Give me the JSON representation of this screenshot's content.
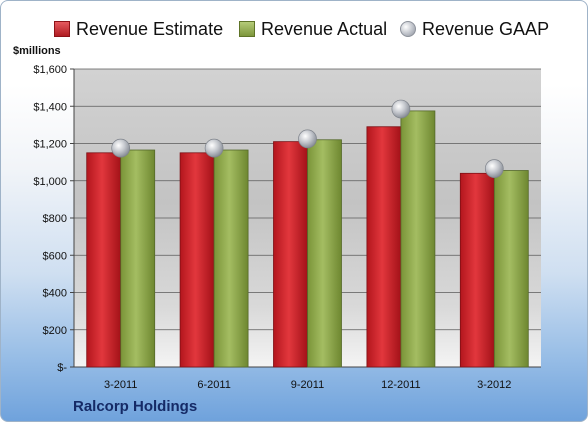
{
  "legend": {
    "estimate_label": "Revenue Estimate",
    "actual_label": "Revenue Actual",
    "gaap_label": "Revenue GAAP"
  },
  "unit_label": "$millions",
  "company_name": "Ralcorp Holdings",
  "colors": {
    "estimate": "#c8242b",
    "actual": "#8faa4c",
    "gaap": "#c0c4cc"
  },
  "chart_data": {
    "type": "bar",
    "categories": [
      "3-2011",
      "6-2011",
      "9-2011",
      "12-2011",
      "3-2012"
    ],
    "series": [
      {
        "name": "Revenue Estimate",
        "values": [
          1150,
          1150,
          1210,
          1290,
          1040
        ]
      },
      {
        "name": "Revenue Actual",
        "values": [
          1165,
          1165,
          1220,
          1375,
          1055
        ]
      },
      {
        "name": "Revenue GAAP",
        "values": [
          1175,
          1175,
          1225,
          1385,
          1065
        ]
      }
    ],
    "ylim": [
      0,
      1600
    ],
    "yticks": [
      0,
      200,
      400,
      600,
      800,
      1000,
      1200,
      1400,
      1600
    ],
    "ytick_labels": [
      "$-",
      "$200",
      "$400",
      "$600",
      "$800",
      "$1,000",
      "$1,200",
      "$1,400",
      "$1,600"
    ],
    "grid": true,
    "legend_position": "top"
  }
}
